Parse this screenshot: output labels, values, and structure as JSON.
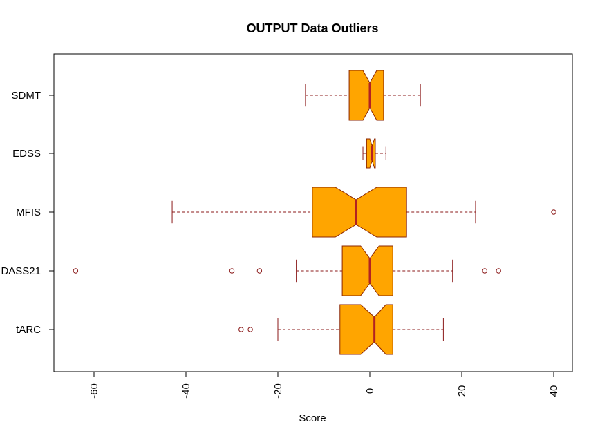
{
  "chart_data": {
    "type": "boxplot",
    "orientation": "horizontal",
    "notched": true,
    "title": "OUTPUT Data Outliers",
    "xlabel": "Score",
    "ylabel": "",
    "xlim": [
      -68,
      44
    ],
    "x_ticks": [
      -60,
      -40,
      -20,
      0,
      20,
      40
    ],
    "grid": false,
    "legend": "none",
    "colors": {
      "box_fill": "#FFA500",
      "box_border": "#8B2500",
      "median": "#B22222",
      "whisker": "#8B1A1A"
    },
    "categories": [
      "tARC",
      "DASS21",
      "MFIS",
      "EDSS",
      "SDMT"
    ],
    "series": [
      {
        "category": "tARC",
        "whisker_low": -20,
        "q1": -6.5,
        "notch_low": -2.0,
        "median": 1.0,
        "notch_high": 3.5,
        "q3": 5.0,
        "whisker_high": 16,
        "outliers": [
          -28,
          -26
        ]
      },
      {
        "category": "DASS21",
        "whisker_low": -16,
        "q1": -6.0,
        "notch_low": -2.0,
        "median": 0.0,
        "notch_high": 2.0,
        "q3": 5.0,
        "whisker_high": 18,
        "outliers": [
          -64,
          -30,
          -24,
          25,
          28
        ]
      },
      {
        "category": "MFIS",
        "whisker_low": -43,
        "q1": -12.5,
        "notch_low": -7.5,
        "median": -3.0,
        "notch_high": 1.5,
        "q3": 8.0,
        "whisker_high": 23,
        "outliers": [
          40
        ]
      },
      {
        "category": "EDSS",
        "whisker_low": -1.5,
        "q1": -0.7,
        "notch_low": 0.0,
        "median": 0.5,
        "notch_high": 1.0,
        "q3": 1.2,
        "whisker_high": 3.5,
        "outliers": []
      },
      {
        "category": "SDMT",
        "whisker_low": -14,
        "q1": -4.5,
        "notch_low": -1.5,
        "median": 0.0,
        "notch_high": 1.5,
        "q3": 3.0,
        "whisker_high": 11,
        "outliers": []
      }
    ]
  }
}
